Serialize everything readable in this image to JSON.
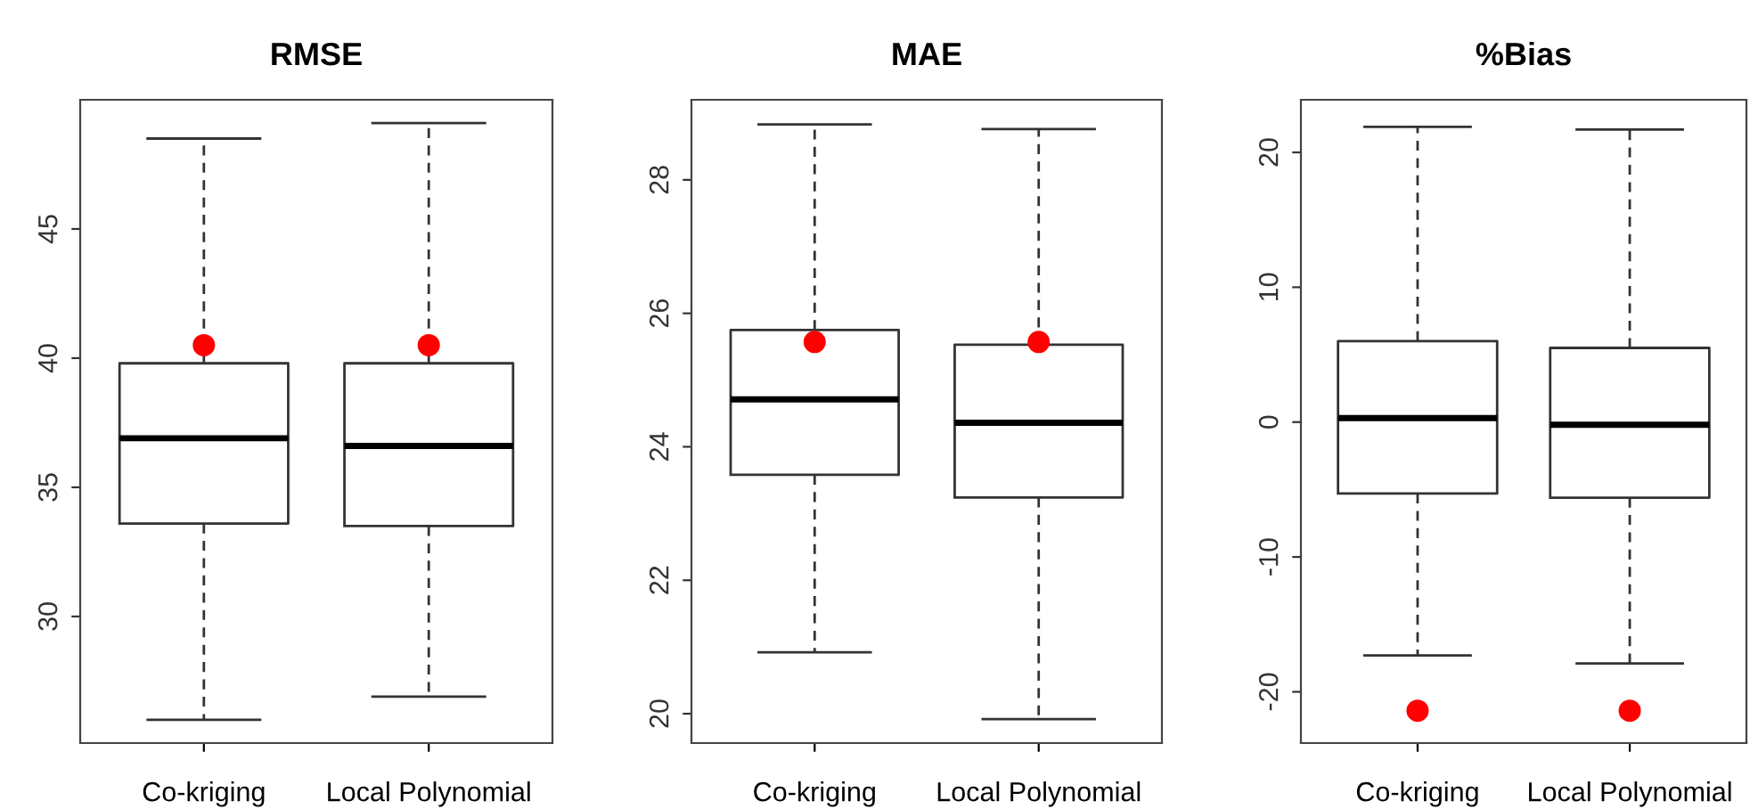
{
  "chart_data": [
    {
      "type": "box",
      "title": "RMSE",
      "categories": [
        "Co-kriging",
        "Local Polynomial"
      ],
      "ylim": [
        25.1,
        50.0
      ],
      "yticks": [
        30,
        35,
        40,
        45
      ],
      "grid": false,
      "boxes": [
        {
          "low": 26.0,
          "q1": 33.6,
          "median": 36.9,
          "q3": 39.8,
          "high": 48.5
        },
        {
          "low": 26.9,
          "q1": 33.5,
          "median": 36.6,
          "q3": 39.8,
          "high": 49.1
        }
      ],
      "series": [
        {
          "type": "scatter",
          "x": [
            "Co-kriging",
            "Local Polynomial"
          ],
          "values": [
            40.5,
            40.5
          ],
          "color": "#ff0000",
          "marker": "circle"
        }
      ]
    },
    {
      "type": "box",
      "title": "MAE",
      "categories": [
        "Co-kriging",
        "Local Polynomial"
      ],
      "ylim": [
        19.56,
        29.2
      ],
      "yticks": [
        20,
        22,
        24,
        26,
        28
      ],
      "grid": false,
      "boxes": [
        {
          "low": 20.92,
          "q1": 23.58,
          "median": 24.71,
          "q3": 25.75,
          "high": 28.83
        },
        {
          "low": 19.92,
          "q1": 23.24,
          "median": 24.36,
          "q3": 25.53,
          "high": 28.76
        }
      ],
      "series": [
        {
          "type": "scatter",
          "x": [
            "Co-kriging",
            "Local Polynomial"
          ],
          "values": [
            25.57,
            25.57
          ],
          "color": "#ff0000",
          "marker": "circle"
        }
      ]
    },
    {
      "type": "box",
      "title": "%Bias",
      "categories": [
        "Co-kriging",
        "Local Polynomial"
      ],
      "ylim": [
        -23.8,
        23.9
      ],
      "yticks": [
        -20,
        -10,
        0,
        10,
        20
      ],
      "grid": false,
      "boxes": [
        {
          "low": -17.3,
          "q1": -5.3,
          "median": 0.3,
          "q3": 6.0,
          "high": 21.9
        },
        {
          "low": -17.9,
          "q1": -5.6,
          "median": -0.2,
          "q3": 5.5,
          "high": 21.7
        }
      ],
      "series": [
        {
          "type": "scatter",
          "x": [
            "Co-kriging",
            "Local Polynomial"
          ],
          "values": [
            -21.4,
            -21.4
          ],
          "color": "#ff0000",
          "marker": "circle"
        }
      ]
    }
  ]
}
